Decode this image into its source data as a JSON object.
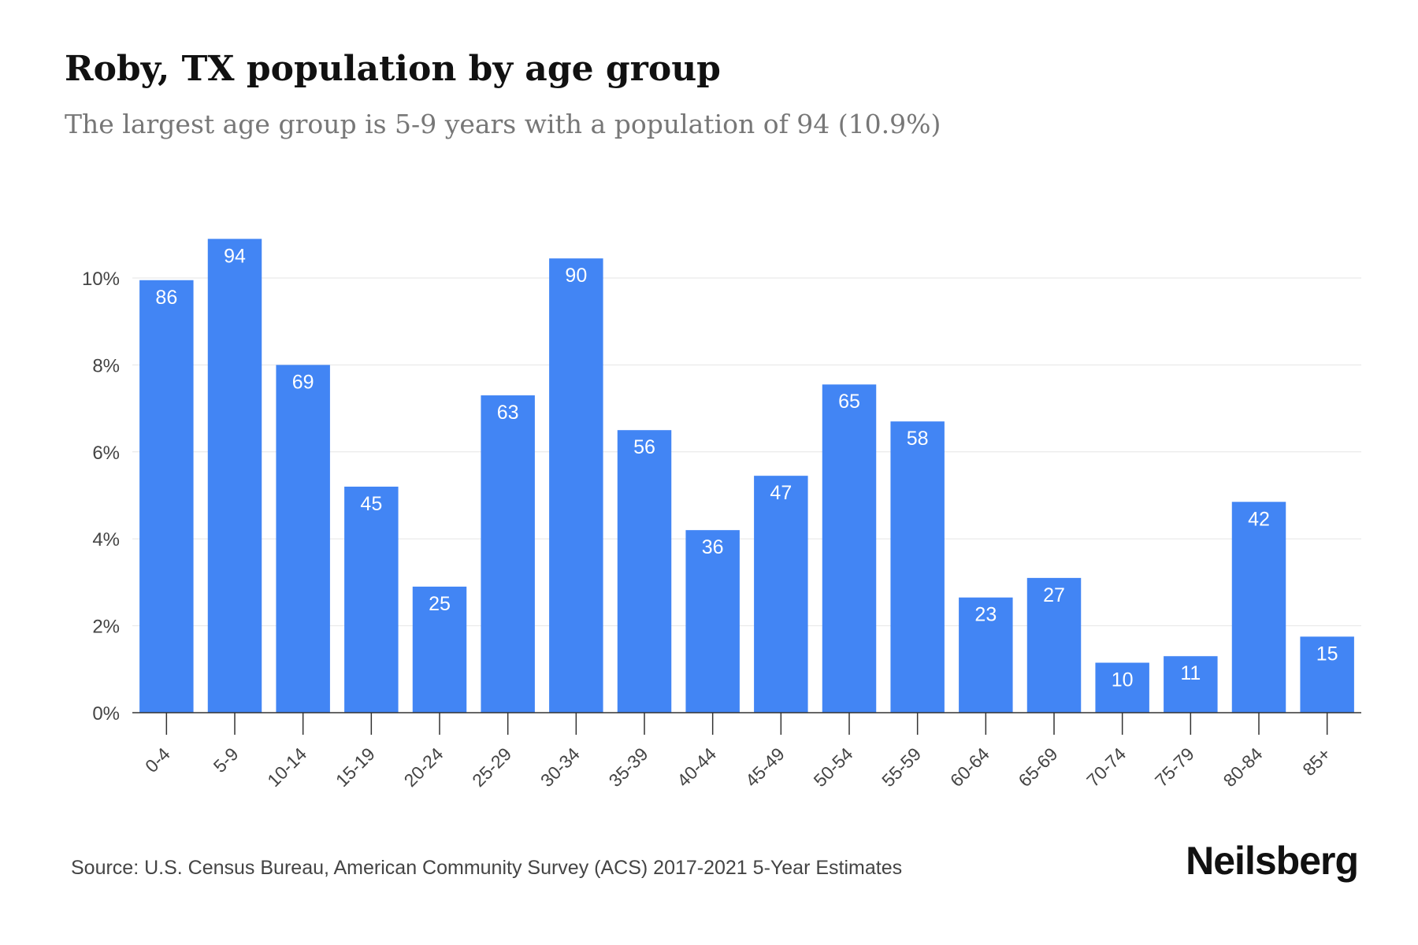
{
  "header": {
    "title": "Roby, TX population by age group",
    "subtitle": "The largest age group is 5-9 years with a population of 94 (10.9%)"
  },
  "footer": {
    "source": "Source: U.S. Census Bureau, American Community Survey (ACS) 2017-2021 5-Year Estimates",
    "brand": "Neilsberg"
  },
  "chart_data": {
    "type": "bar",
    "categories": [
      "0-4",
      "5-9",
      "10-14",
      "15-19",
      "20-24",
      "25-29",
      "30-34",
      "35-39",
      "40-44",
      "45-49",
      "50-54",
      "55-59",
      "60-64",
      "65-69",
      "70-74",
      "75-79",
      "80-84",
      "85+"
    ],
    "values": [
      9.95,
      10.9,
      8.0,
      5.2,
      2.9,
      7.3,
      10.45,
      6.5,
      4.2,
      5.45,
      7.55,
      6.7,
      2.65,
      3.1,
      1.15,
      1.3,
      4.85,
      1.75
    ],
    "data_labels": [
      "86",
      "94",
      "69",
      "45",
      "25",
      "63",
      "90",
      "56",
      "36",
      "47",
      "65",
      "58",
      "23",
      "27",
      "10",
      "11",
      "42",
      "15"
    ],
    "yticks": [
      0,
      2,
      4,
      6,
      8,
      10
    ],
    "ytick_labels": [
      "0%",
      "2%",
      "4%",
      "6%",
      "8%",
      "10%"
    ],
    "ylim": [
      0,
      11
    ],
    "grid": true,
    "bar_color": "#4285f4",
    "label_color": "#ffffff"
  }
}
